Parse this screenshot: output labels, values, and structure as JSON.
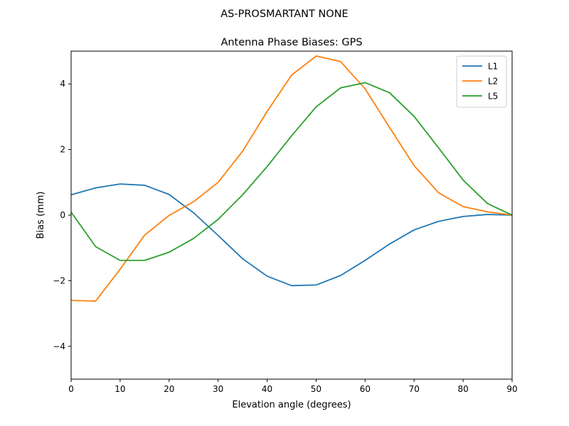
{
  "chart_data": {
    "type": "line",
    "suptitle": "AS-PROSMARTANT  NONE",
    "title": "Antenna Phase Biases: GPS",
    "xlabel": "Elevation angle (degrees)",
    "ylabel": "Bias (mm)",
    "xlim": [
      0,
      90
    ],
    "ylim": [
      -5,
      5
    ],
    "x_ticks": [
      0,
      10,
      20,
      30,
      40,
      50,
      60,
      70,
      80,
      90
    ],
    "y_ticks": [
      -4,
      -2,
      0,
      2,
      4
    ],
    "x_tick_labels": [
      "0",
      "10",
      "20",
      "30",
      "40",
      "50",
      "60",
      "70",
      "80",
      "90"
    ],
    "y_tick_labels": [
      "−4",
      "−2",
      "0",
      "2",
      "4"
    ],
    "grid": false,
    "legend_position": "top-right",
    "x": [
      0,
      5,
      10,
      15,
      20,
      25,
      30,
      35,
      40,
      45,
      50,
      55,
      60,
      65,
      70,
      75,
      80,
      85,
      90
    ],
    "series": [
      {
        "name": "L1",
        "color": "#1f77b4",
        "values": [
          0.62,
          0.83,
          0.95,
          0.91,
          0.63,
          0.07,
          -0.62,
          -1.33,
          -1.86,
          -2.15,
          -2.13,
          -1.84,
          -1.38,
          -0.88,
          -0.45,
          -0.19,
          -0.04,
          0.02,
          0.0
        ]
      },
      {
        "name": "L2",
        "color": "#ff7f0e",
        "values": [
          -2.6,
          -2.62,
          -1.65,
          -0.61,
          -0.01,
          0.41,
          1.0,
          1.95,
          3.16,
          4.27,
          4.85,
          4.68,
          3.85,
          2.67,
          1.51,
          0.68,
          0.26,
          0.1,
          0.0
        ]
      },
      {
        "name": "L5",
        "color": "#2ca02c",
        "values": [
          0.09,
          -0.96,
          -1.38,
          -1.38,
          -1.13,
          -0.71,
          -0.13,
          0.62,
          1.48,
          2.42,
          3.3,
          3.88,
          4.04,
          3.73,
          3.01,
          2.05,
          1.07,
          0.35,
          0.0
        ]
      }
    ]
  }
}
